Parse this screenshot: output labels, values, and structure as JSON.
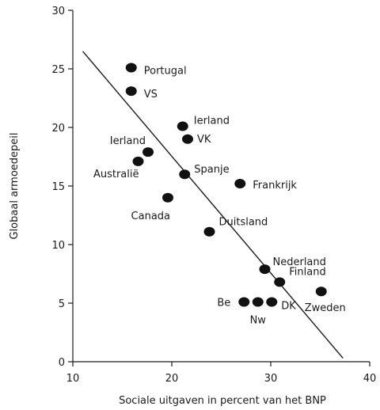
{
  "chart_data": {
    "type": "scatter",
    "title": "",
    "xlabel": "Sociale uitgaven in percent van het BNP",
    "ylabel": "Globaal armoedepeil",
    "xlim": [
      10,
      40
    ],
    "ylim": [
      0,
      30
    ],
    "xticks": [
      10,
      20,
      30,
      40
    ],
    "yticks": [
      0,
      5,
      10,
      15,
      20,
      25,
      30
    ],
    "grid": false,
    "legend": "none",
    "points": [
      {
        "label": "Portugal",
        "x": 15.9,
        "y": 25.1
      },
      {
        "label": "VS",
        "x": 15.9,
        "y": 23.1
      },
      {
        "label": "Ierland",
        "x": 21.1,
        "y": 20.1
      },
      {
        "label": "VK",
        "x": 21.6,
        "y": 19.0
      },
      {
        "label": "Ierland",
        "x": 17.6,
        "y": 17.9
      },
      {
        "label": "Australië",
        "x": 16.6,
        "y": 17.1
      },
      {
        "label": "Spanje",
        "x": 21.3,
        "y": 16.0
      },
      {
        "label": "Frankrijk",
        "x": 26.9,
        "y": 15.2
      },
      {
        "label": "Canada",
        "x": 19.6,
        "y": 14.0
      },
      {
        "label": "Duitsland",
        "x": 23.8,
        "y": 11.1
      },
      {
        "label": "Nederland",
        "x": 29.4,
        "y": 7.9
      },
      {
        "label": "Finland",
        "x": 30.9,
        "y": 6.8
      },
      {
        "label": "Zweden",
        "x": 35.1,
        "y": 6.0
      },
      {
        "label": "Be",
        "x": 27.3,
        "y": 5.1
      },
      {
        "label": "Nw",
        "x": 28.7,
        "y": 5.1
      },
      {
        "label": "DK",
        "x": 30.1,
        "y": 5.1
      }
    ],
    "trendline": {
      "x": [
        11.0,
        37.3
      ],
      "y": [
        26.5,
        0.3
      ]
    }
  }
}
